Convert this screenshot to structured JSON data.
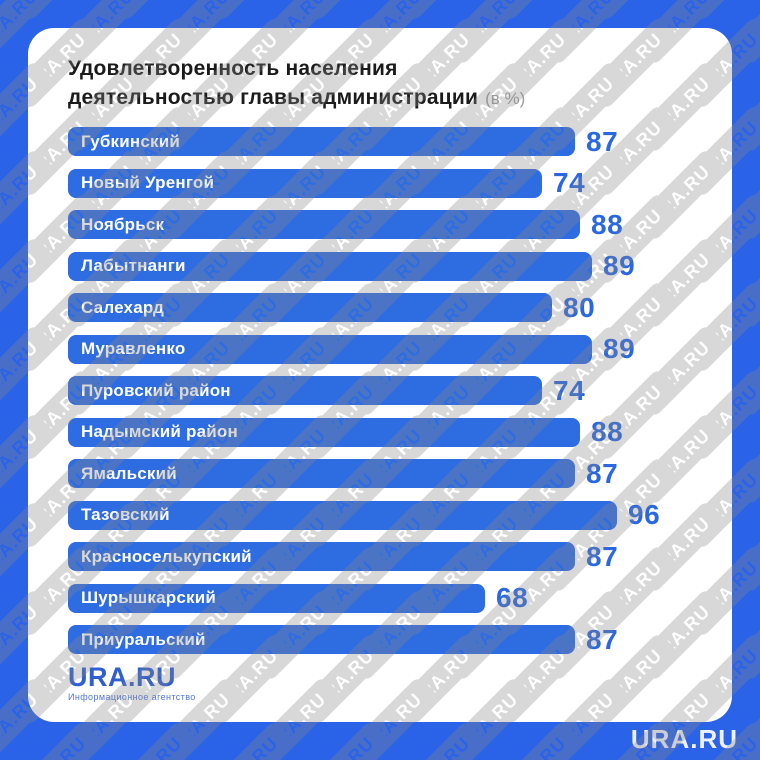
{
  "colors": {
    "frame_blue": "#2a63e8",
    "bar_blue": "#2e6ce2",
    "value_blue": "#2b67e0",
    "title_dark": "#1b1b1b",
    "unit_gray": "#9d9d9d",
    "logo_blue": "#2e5ecf",
    "logo_sub_blue": "#5578d8",
    "corner_white": "#eef1fa",
    "watermark_gray": "#888888"
  },
  "chart_data": {
    "type": "bar",
    "orientation": "horizontal",
    "title": "Удовлетворенность населения деятельностью главы администрации",
    "title_lines": [
      "Удовлетворенность населения",
      "деятельностью главы администрации"
    ],
    "unit_label": "(в %)",
    "unit": "%",
    "xlim": [
      0,
      100
    ],
    "grid": false,
    "legend": false,
    "value_labels": "right-of-bar",
    "category_labels": "inside-bar",
    "categories": [
      "Губкинский",
      "Новый Уренгой",
      "Ноябрьск",
      "Лабытнанги",
      "Салехард",
      "Муравленко",
      "Пуровский район",
      "Надымский район",
      "Ямальский",
      "Тазовский",
      "Красноселькупский",
      "Шурышкарский",
      "Приуральский"
    ],
    "values": [
      87,
      74,
      88,
      89,
      80,
      89,
      74,
      88,
      87,
      96,
      87,
      68,
      87
    ]
  },
  "footer": {
    "logo": "URA.RU",
    "logo_subtitle": "Информационное агентство",
    "corner_brand": "URA.RU"
  },
  "watermark": {
    "text": "URA.RU"
  }
}
